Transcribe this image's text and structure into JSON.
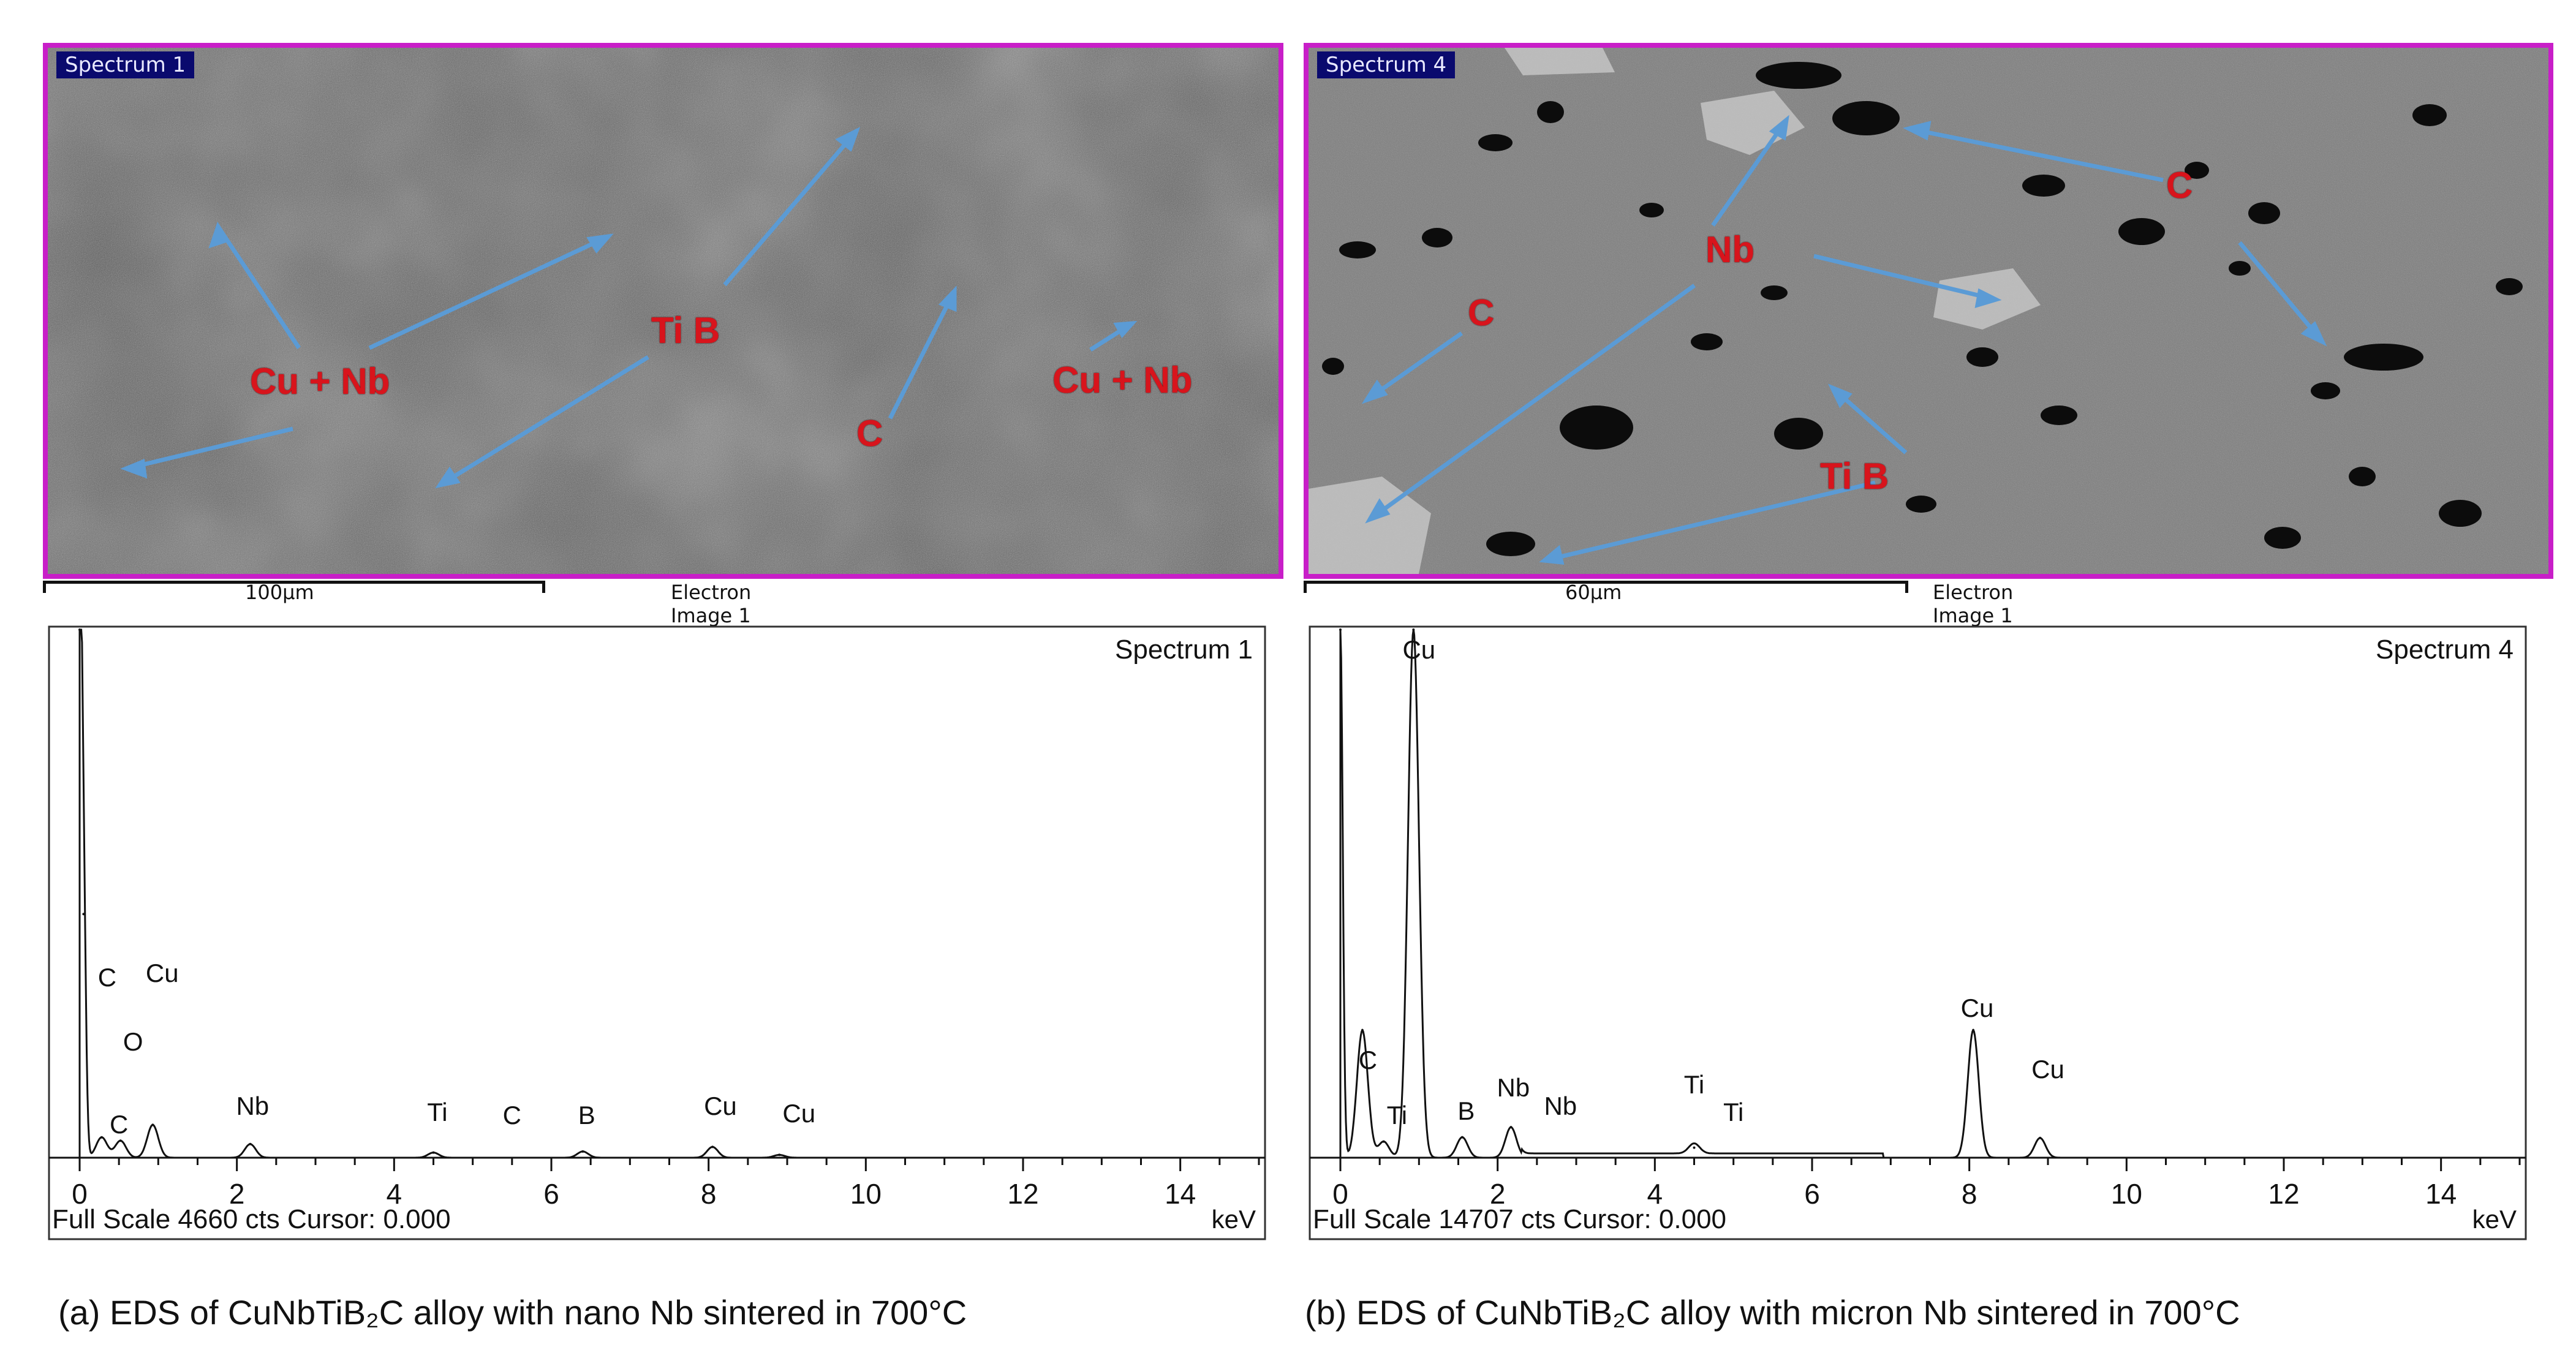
{
  "panels": [
    {
      "sem": {
        "tag": "Spectrum 1",
        "scale": "100µm",
        "image_title": "Electron Image 1",
        "labels": [
          "Cu + Nb",
          "Ti B",
          "C",
          "Cu + Nb"
        ]
      },
      "spectrum": {
        "title": "Spectrum 1",
        "footer": "Full Scale 4660 cts Cursor: 0.000",
        "unit": "keV",
        "peaks": [
          "C",
          "Cu",
          "O",
          "C",
          "Nb",
          "Ti",
          "C",
          "B",
          "Cu",
          "Cu"
        ]
      },
      "caption": "(a) EDS of CuNbTiB₂C alloy with nano Nb sintered in 700°C"
    },
    {
      "sem": {
        "tag": "Spectrum 4",
        "scale": "60µm",
        "image_title": "Electron Image 1",
        "labels": [
          "C",
          "Nb",
          "C",
          "Ti B"
        ]
      },
      "spectrum": {
        "title": "Spectrum 4",
        "footer": "Full Scale 14707 cts Cursor: 0.000",
        "unit": "keV",
        "peaks": [
          "Cu",
          "C",
          "Ti",
          "B",
          "Nb",
          "Nb",
          "Ti",
          "Ti",
          "Cu",
          "Cu"
        ]
      },
      "caption": "(b) EDS of CuNbTiB₂C alloy with micron Nb sintered in 700°C"
    }
  ],
  "chart_data": [
    {
      "type": "line",
      "title": "Spectrum 1",
      "xlabel": "keV",
      "xlim": [
        0,
        15
      ],
      "ylim": [
        0,
        4660
      ],
      "x_ticks": [
        0,
        2,
        4,
        6,
        8,
        10,
        12,
        14
      ],
      "series": [
        {
          "values": [
            [
              0,
              4660
            ],
            [
              0.05,
              2150
            ],
            [
              0.28,
              180
            ],
            [
              0.52,
              150
            ],
            [
              0.93,
              290
            ],
            [
              2.17,
              120
            ],
            [
              4.5,
              45
            ],
            [
              6.4,
              55
            ],
            [
              8.05,
              95
            ],
            [
              8.9,
              25
            ]
          ]
        }
      ]
    },
    {
      "type": "line",
      "title": "Spectrum 4",
      "xlabel": "keV",
      "xlim": [
        0,
        15
      ],
      "ylim": [
        0,
        14707
      ],
      "x_ticks": [
        0,
        2,
        4,
        6,
        8,
        10,
        12,
        14
      ],
      "series": [
        {
          "values": [
            [
              0,
              14707
            ],
            [
              0.28,
              3550
            ],
            [
              0.55,
              450
            ],
            [
              0.93,
              14707
            ],
            [
              1.55,
              570
            ],
            [
              2.17,
              850
            ],
            [
              4.5,
              280
            ],
            [
              8.05,
              3550
            ],
            [
              8.9,
              550
            ]
          ]
        }
      ]
    }
  ]
}
